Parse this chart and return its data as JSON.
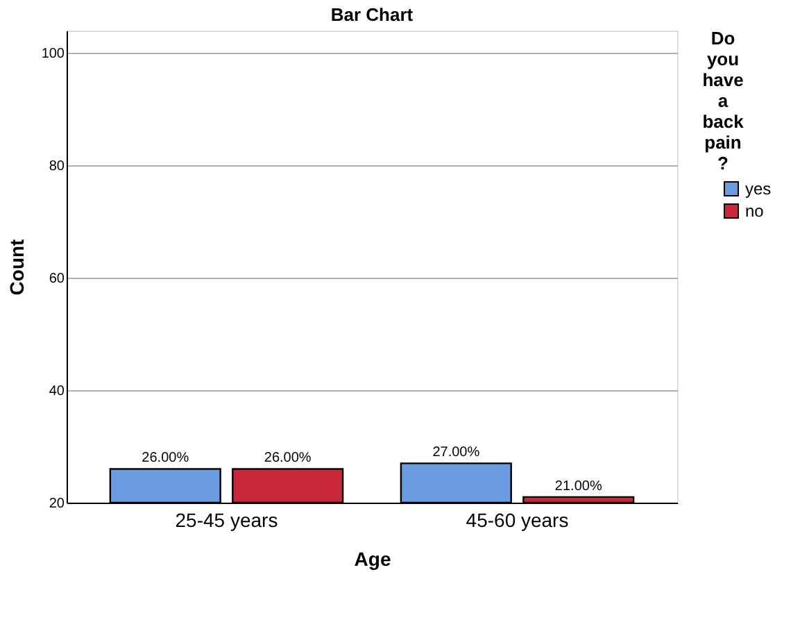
{
  "chart_data": {
    "type": "bar",
    "title": "Bar Chart",
    "xlabel": "Age",
    "ylabel": "Count",
    "legend_title": "Do you have a back pain ?",
    "categories": [
      "25-45 years",
      "45-60 years"
    ],
    "series": [
      {
        "name": "yes",
        "color": "#6b9be0",
        "values": [
          26,
          27
        ],
        "value_labels": [
          "26.00%",
          "27.00%"
        ]
      },
      {
        "name": "no",
        "color": "#c8283a",
        "values": [
          26,
          21
        ],
        "value_labels": [
          "26.00%",
          "21.00%"
        ]
      }
    ],
    "ylim": [
      20,
      104
    ],
    "yticks": [
      20,
      40,
      60,
      80,
      100
    ],
    "grid": "y",
    "legend": "top right"
  }
}
